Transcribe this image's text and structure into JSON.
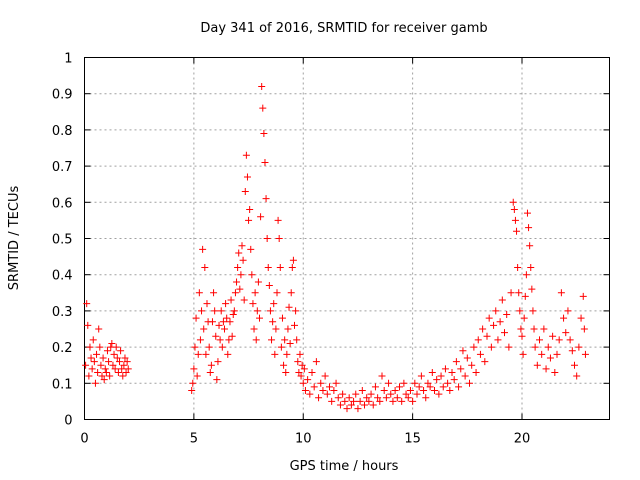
{
  "chart_data": {
    "type": "scatter",
    "title": "Day 341 of 2016, SRMTID for receiver gamb",
    "xlabel": "GPS time / hours",
    "ylabel": "SRMTID / TECUs",
    "xlim": [
      0,
      24
    ],
    "ylim": [
      0,
      1
    ],
    "xticks": [
      0,
      5,
      10,
      15,
      20
    ],
    "yticks": [
      0,
      0.1,
      0.2,
      0.3,
      0.4,
      0.5,
      0.6,
      0.7,
      0.8,
      0.9,
      1
    ],
    "xtick_labels": [
      "0",
      "5",
      "10",
      "15",
      "20"
    ],
    "ytick_labels": [
      "0",
      "0.1",
      "0.2",
      "0.3",
      "0.4",
      "0.5",
      "0.6",
      "0.7",
      "0.8",
      "0.9",
      "1"
    ],
    "grid": true,
    "marker": "+",
    "series": [
      {
        "name": "SRMTID",
        "color": "#ff0000",
        "points": [
          [
            0.05,
            0.15
          ],
          [
            0.1,
            0.32
          ],
          [
            0.15,
            0.26
          ],
          [
            0.2,
            0.12
          ],
          [
            0.25,
            0.2
          ],
          [
            0.3,
            0.17
          ],
          [
            0.35,
            0.14
          ],
          [
            0.4,
            0.22
          ],
          [
            0.45,
            0.16
          ],
          [
            0.5,
            0.1
          ],
          [
            0.55,
            0.18
          ],
          [
            0.6,
            0.13
          ],
          [
            0.65,
            0.25
          ],
          [
            0.7,
            0.2
          ],
          [
            0.75,
            0.15
          ],
          [
            0.8,
            0.12
          ],
          [
            0.85,
            0.17
          ],
          [
            0.9,
            0.11
          ],
          [
            0.95,
            0.14
          ],
          [
            1.0,
            0.13
          ],
          [
            1.05,
            0.19
          ],
          [
            1.1,
            0.16
          ],
          [
            1.15,
            0.12
          ],
          [
            1.2,
            0.2
          ],
          [
            1.25,
            0.21
          ],
          [
            1.3,
            0.15
          ],
          [
            1.35,
            0.18
          ],
          [
            1.4,
            0.14
          ],
          [
            1.45,
            0.2
          ],
          [
            1.5,
            0.17
          ],
          [
            1.55,
            0.13
          ],
          [
            1.6,
            0.16
          ],
          [
            1.65,
            0.19
          ],
          [
            1.7,
            0.14
          ],
          [
            1.75,
            0.12
          ],
          [
            1.8,
            0.15
          ],
          [
            1.85,
            0.17
          ],
          [
            1.9,
            0.13
          ],
          [
            1.95,
            0.16
          ],
          [
            2.0,
            0.14
          ],
          [
            4.9,
            0.08
          ],
          [
            4.95,
            0.1
          ],
          [
            5.0,
            0.14
          ],
          [
            5.05,
            0.2
          ],
          [
            5.1,
            0.28
          ],
          [
            5.15,
            0.12
          ],
          [
            5.2,
            0.18
          ],
          [
            5.25,
            0.35
          ],
          [
            5.3,
            0.22
          ],
          [
            5.35,
            0.3
          ],
          [
            5.4,
            0.47
          ],
          [
            5.45,
            0.25
          ],
          [
            5.5,
            0.42
          ],
          [
            5.55,
            0.18
          ],
          [
            5.6,
            0.32
          ],
          [
            5.65,
            0.27
          ],
          [
            5.7,
            0.2
          ],
          [
            5.75,
            0.13
          ],
          [
            5.8,
            0.15
          ],
          [
            5.85,
            0.27
          ],
          [
            5.9,
            0.35
          ],
          [
            5.95,
            0.3
          ],
          [
            6.0,
            0.23
          ],
          [
            6.05,
            0.11
          ],
          [
            6.1,
            0.16
          ],
          [
            6.15,
            0.26
          ],
          [
            6.2,
            0.22
          ],
          [
            6.25,
            0.3
          ],
          [
            6.3,
            0.2
          ],
          [
            6.35,
            0.27
          ],
          [
            6.4,
            0.25
          ],
          [
            6.45,
            0.32
          ],
          [
            6.5,
            0.28
          ],
          [
            6.55,
            0.18
          ],
          [
            6.6,
            0.22
          ],
          [
            6.65,
            0.27
          ],
          [
            6.7,
            0.33
          ],
          [
            6.75,
            0.23
          ],
          [
            6.8,
            0.29
          ],
          [
            6.85,
            0.3
          ],
          [
            6.9,
            0.35
          ],
          [
            6.95,
            0.38
          ],
          [
            7.0,
            0.42
          ],
          [
            7.05,
            0.46
          ],
          [
            7.1,
            0.36
          ],
          [
            7.15,
            0.4
          ],
          [
            7.2,
            0.48
          ],
          [
            7.25,
            0.44
          ],
          [
            7.3,
            0.33
          ],
          [
            7.35,
            0.63
          ],
          [
            7.4,
            0.73
          ],
          [
            7.45,
            0.67
          ],
          [
            7.5,
            0.55
          ],
          [
            7.55,
            0.58
          ],
          [
            7.6,
            0.47
          ],
          [
            7.65,
            0.4
          ],
          [
            7.7,
            0.32
          ],
          [
            7.75,
            0.25
          ],
          [
            7.8,
            0.35
          ],
          [
            7.85,
            0.22
          ],
          [
            7.9,
            0.3
          ],
          [
            7.95,
            0.38
          ],
          [
            8.0,
            0.28
          ],
          [
            8.05,
            0.56
          ],
          [
            8.1,
            0.92
          ],
          [
            8.15,
            0.86
          ],
          [
            8.2,
            0.79
          ],
          [
            8.25,
            0.71
          ],
          [
            8.3,
            0.61
          ],
          [
            8.35,
            0.5
          ],
          [
            8.4,
            0.42
          ],
          [
            8.45,
            0.37
          ],
          [
            8.5,
            0.3
          ],
          [
            8.55,
            0.22
          ],
          [
            8.6,
            0.27
          ],
          [
            8.65,
            0.32
          ],
          [
            8.7,
            0.18
          ],
          [
            8.75,
            0.25
          ],
          [
            8.8,
            0.35
          ],
          [
            8.85,
            0.55
          ],
          [
            8.9,
            0.5
          ],
          [
            8.95,
            0.42
          ],
          [
            9.0,
            0.2
          ],
          [
            9.05,
            0.28
          ],
          [
            9.1,
            0.15
          ],
          [
            9.15,
            0.22
          ],
          [
            9.2,
            0.13
          ],
          [
            9.25,
            0.18
          ],
          [
            9.3,
            0.25
          ],
          [
            9.35,
            0.31
          ],
          [
            9.4,
            0.21
          ],
          [
            9.45,
            0.35
          ],
          [
            9.5,
            0.42
          ],
          [
            9.55,
            0.44
          ],
          [
            9.6,
            0.26
          ],
          [
            9.65,
            0.3
          ],
          [
            9.7,
            0.22
          ],
          [
            9.75,
            0.16
          ],
          [
            9.8,
            0.13
          ],
          [
            9.85,
            0.18
          ],
          [
            9.9,
            0.12
          ],
          [
            9.95,
            0.15
          ],
          [
            10.0,
            0.1
          ],
          [
            10.05,
            0.14
          ],
          [
            10.1,
            0.08
          ],
          [
            10.2,
            0.11
          ],
          [
            10.3,
            0.07
          ],
          [
            10.4,
            0.13
          ],
          [
            10.5,
            0.09
          ],
          [
            10.6,
            0.16
          ],
          [
            10.7,
            0.06
          ],
          [
            10.8,
            0.1
          ],
          [
            10.9,
            0.08
          ],
          [
            11.0,
            0.12
          ],
          [
            11.1,
            0.07
          ],
          [
            11.2,
            0.09
          ],
          [
            11.3,
            0.05
          ],
          [
            11.4,
            0.08
          ],
          [
            11.5,
            0.1
          ],
          [
            11.6,
            0.06
          ],
          [
            11.7,
            0.04
          ],
          [
            11.8,
            0.07
          ],
          [
            11.9,
            0.05
          ],
          [
            12.0,
            0.03
          ],
          [
            12.1,
            0.06
          ],
          [
            12.2,
            0.04
          ],
          [
            12.3,
            0.05
          ],
          [
            12.4,
            0.07
          ],
          [
            12.5,
            0.03
          ],
          [
            12.6,
            0.05
          ],
          [
            12.7,
            0.08
          ],
          [
            12.8,
            0.04
          ],
          [
            12.9,
            0.06
          ],
          [
            13.0,
            0.05
          ],
          [
            13.1,
            0.07
          ],
          [
            13.2,
            0.04
          ],
          [
            13.3,
            0.09
          ],
          [
            13.4,
            0.06
          ],
          [
            13.5,
            0.05
          ],
          [
            13.6,
            0.12
          ],
          [
            13.7,
            0.08
          ],
          [
            13.8,
            0.06
          ],
          [
            13.9,
            0.1
          ],
          [
            14.0,
            0.07
          ],
          [
            14.1,
            0.05
          ],
          [
            14.2,
            0.08
          ],
          [
            14.3,
            0.06
          ],
          [
            14.4,
            0.09
          ],
          [
            14.5,
            0.05
          ],
          [
            14.6,
            0.1
          ],
          [
            14.7,
            0.07
          ],
          [
            14.8,
            0.06
          ],
          [
            14.9,
            0.08
          ],
          [
            15.0,
            0.05
          ],
          [
            15.1,
            0.1
          ],
          [
            15.2,
            0.07
          ],
          [
            15.3,
            0.09
          ],
          [
            15.4,
            0.12
          ],
          [
            15.5,
            0.08
          ],
          [
            15.6,
            0.06
          ],
          [
            15.7,
            0.1
          ],
          [
            15.8,
            0.09
          ],
          [
            15.9,
            0.13
          ],
          [
            16.0,
            0.08
          ],
          [
            16.1,
            0.11
          ],
          [
            16.2,
            0.07
          ],
          [
            16.3,
            0.12
          ],
          [
            16.4,
            0.09
          ],
          [
            16.5,
            0.14
          ],
          [
            16.6,
            0.1
          ],
          [
            16.7,
            0.08
          ],
          [
            16.8,
            0.13
          ],
          [
            16.9,
            0.11
          ],
          [
            17.0,
            0.16
          ],
          [
            17.1,
            0.09
          ],
          [
            17.2,
            0.14
          ],
          [
            17.3,
            0.19
          ],
          [
            17.4,
            0.12
          ],
          [
            17.5,
            0.17
          ],
          [
            17.6,
            0.1
          ],
          [
            17.7,
            0.15
          ],
          [
            17.8,
            0.2
          ],
          [
            17.9,
            0.13
          ],
          [
            18.0,
            0.22
          ],
          [
            18.1,
            0.18
          ],
          [
            18.2,
            0.25
          ],
          [
            18.3,
            0.16
          ],
          [
            18.4,
            0.23
          ],
          [
            18.5,
            0.28
          ],
          [
            18.6,
            0.2
          ],
          [
            18.7,
            0.26
          ],
          [
            18.8,
            0.3
          ],
          [
            18.9,
            0.22
          ],
          [
            19.0,
            0.27
          ],
          [
            19.1,
            0.33
          ],
          [
            19.2,
            0.24
          ],
          [
            19.3,
            0.29
          ],
          [
            19.4,
            0.2
          ],
          [
            19.5,
            0.35
          ],
          [
            19.6,
            0.6
          ],
          [
            19.65,
            0.58
          ],
          [
            19.7,
            0.55
          ],
          [
            19.75,
            0.52
          ],
          [
            19.8,
            0.42
          ],
          [
            19.85,
            0.35
          ],
          [
            19.9,
            0.3
          ],
          [
            19.95,
            0.25
          ],
          [
            20.0,
            0.23
          ],
          [
            20.05,
            0.18
          ],
          [
            20.1,
            0.28
          ],
          [
            20.15,
            0.34
          ],
          [
            20.2,
            0.4
          ],
          [
            20.25,
            0.57
          ],
          [
            20.3,
            0.53
          ],
          [
            20.35,
            0.48
          ],
          [
            20.4,
            0.42
          ],
          [
            20.45,
            0.36
          ],
          [
            20.5,
            0.3
          ],
          [
            20.55,
            0.25
          ],
          [
            20.6,
            0.2
          ],
          [
            20.7,
            0.15
          ],
          [
            20.8,
            0.22
          ],
          [
            20.9,
            0.18
          ],
          [
            21.0,
            0.25
          ],
          [
            21.1,
            0.14
          ],
          [
            21.2,
            0.2
          ],
          [
            21.3,
            0.17
          ],
          [
            21.4,
            0.23
          ],
          [
            21.5,
            0.13
          ],
          [
            21.6,
            0.18
          ],
          [
            21.7,
            0.22
          ],
          [
            21.8,
            0.35
          ],
          [
            21.9,
            0.28
          ],
          [
            22.0,
            0.24
          ],
          [
            22.1,
            0.3
          ],
          [
            22.2,
            0.22
          ],
          [
            22.3,
            0.19
          ],
          [
            22.4,
            0.15
          ],
          [
            22.5,
            0.12
          ],
          [
            22.6,
            0.2
          ],
          [
            22.7,
            0.28
          ],
          [
            22.8,
            0.34
          ],
          [
            22.85,
            0.25
          ],
          [
            22.9,
            0.18
          ]
        ]
      }
    ]
  }
}
